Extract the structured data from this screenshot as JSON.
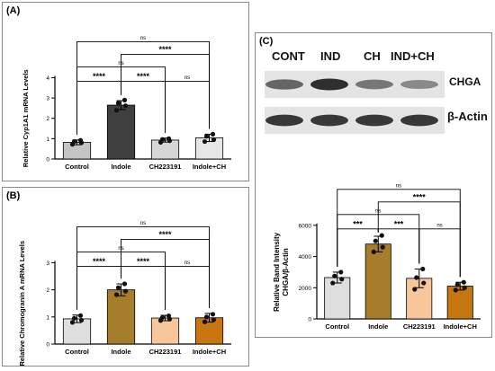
{
  "panels": {
    "a": {
      "label": "(A)"
    },
    "b": {
      "label": "(B)"
    },
    "c": {
      "label": "(C)"
    }
  },
  "blot": {
    "lanes": [
      "CONT",
      "IND",
      "CH",
      "IND+CH"
    ],
    "rows": [
      {
        "label": "CHGA",
        "intensities": [
          0.55,
          0.85,
          0.45,
          0.35
        ]
      },
      {
        "label": "β-Actin",
        "intensities": [
          0.8,
          0.8,
          0.8,
          0.8
        ]
      }
    ]
  },
  "chart_data": [
    {
      "id": "A",
      "type": "bar",
      "categories": [
        "Control",
        "Indole",
        "CH223191",
        "Indole+CH"
      ],
      "values": [
        0.82,
        2.65,
        0.93,
        1.04
      ],
      "errors": [
        0.12,
        0.22,
        0.1,
        0.18
      ],
      "points": [
        [
          0.72,
          0.8,
          0.86,
          0.92
        ],
        [
          2.4,
          2.62,
          2.75,
          2.9
        ],
        [
          0.82,
          0.9,
          0.96,
          1.0
        ],
        [
          0.86,
          0.95,
          1.12,
          1.22
        ]
      ],
      "colors": [
        "#c4c4c4",
        "#3f3f3f",
        "#d6d6d6",
        "#e6e6e6"
      ],
      "ylabel": "Relative Cyp1A1 mRNA Levels",
      "xlabel": "",
      "ylim": [
        0,
        4
      ],
      "yticks": [
        0,
        1,
        2,
        3,
        4
      ],
      "comparisons": [
        {
          "from": 0,
          "to": 1,
          "text": "****"
        },
        {
          "from": 1,
          "to": 2,
          "text": "****"
        },
        {
          "from": 2,
          "to": 3,
          "text": "ns"
        },
        {
          "from": 0,
          "to": 2,
          "text": "ns"
        },
        {
          "from": 1,
          "to": 3,
          "text": "****"
        },
        {
          "from": 0,
          "to": 3,
          "text": "ns"
        }
      ]
    },
    {
      "id": "B",
      "type": "bar",
      "categories": [
        "Control",
        "Indole",
        "CH223191",
        "Indole+CH"
      ],
      "values": [
        0.93,
        2.0,
        0.96,
        0.97
      ],
      "errors": [
        0.14,
        0.22,
        0.1,
        0.16
      ],
      "points": [
        [
          0.8,
          0.88,
          0.95,
          1.05
        ],
        [
          1.82,
          1.95,
          2.08,
          2.22
        ],
        [
          0.87,
          0.92,
          0.98,
          1.04
        ],
        [
          0.82,
          0.9,
          1.0,
          1.1
        ]
      ],
      "colors": [
        "#dedede",
        "#a57d2b",
        "#f7c79b",
        "#c87612"
      ],
      "ylabel": "Relative Chromogranin A mRNA Levels",
      "xlabel": "",
      "ylim": [
        0,
        3
      ],
      "yticks": [
        0,
        1,
        2,
        3
      ],
      "comparisons": [
        {
          "from": 0,
          "to": 1,
          "text": "****"
        },
        {
          "from": 1,
          "to": 2,
          "text": "****"
        },
        {
          "from": 2,
          "to": 3,
          "text": "ns"
        },
        {
          "from": 0,
          "to": 2,
          "text": "ns"
        },
        {
          "from": 1,
          "to": 3,
          "text": "****"
        },
        {
          "from": 0,
          "to": 3,
          "text": "ns"
        }
      ]
    },
    {
      "id": "C",
      "type": "bar",
      "categories": [
        "Control",
        "Indole",
        "CH223191",
        "Indole+CH"
      ],
      "values": [
        2650,
        4800,
        2600,
        2100
      ],
      "errors": [
        350,
        500,
        600,
        250
      ],
      "points": [
        [
          2300,
          2550,
          2750,
          3000
        ],
        [
          4300,
          4600,
          5000,
          5350
        ],
        [
          1900,
          2300,
          2650,
          3200
        ],
        [
          1850,
          2000,
          2200,
          2350
        ]
      ],
      "colors": [
        "#dedede",
        "#a57d2b",
        "#f7c79b",
        "#c87612"
      ],
      "ylabel": "Relative Band Intensity\nCHGA/β-Actin",
      "xlabel": "",
      "ylim": [
        0,
        6000
      ],
      "yticks": [
        0,
        2000,
        4000,
        6000
      ],
      "comparisons": [
        {
          "from": 0,
          "to": 1,
          "text": "***"
        },
        {
          "from": 1,
          "to": 2,
          "text": "***"
        },
        {
          "from": 2,
          "to": 3,
          "text": "ns"
        },
        {
          "from": 0,
          "to": 2,
          "text": "ns"
        },
        {
          "from": 1,
          "to": 3,
          "text": "****"
        },
        {
          "from": 0,
          "to": 3,
          "text": "ns"
        }
      ]
    }
  ]
}
